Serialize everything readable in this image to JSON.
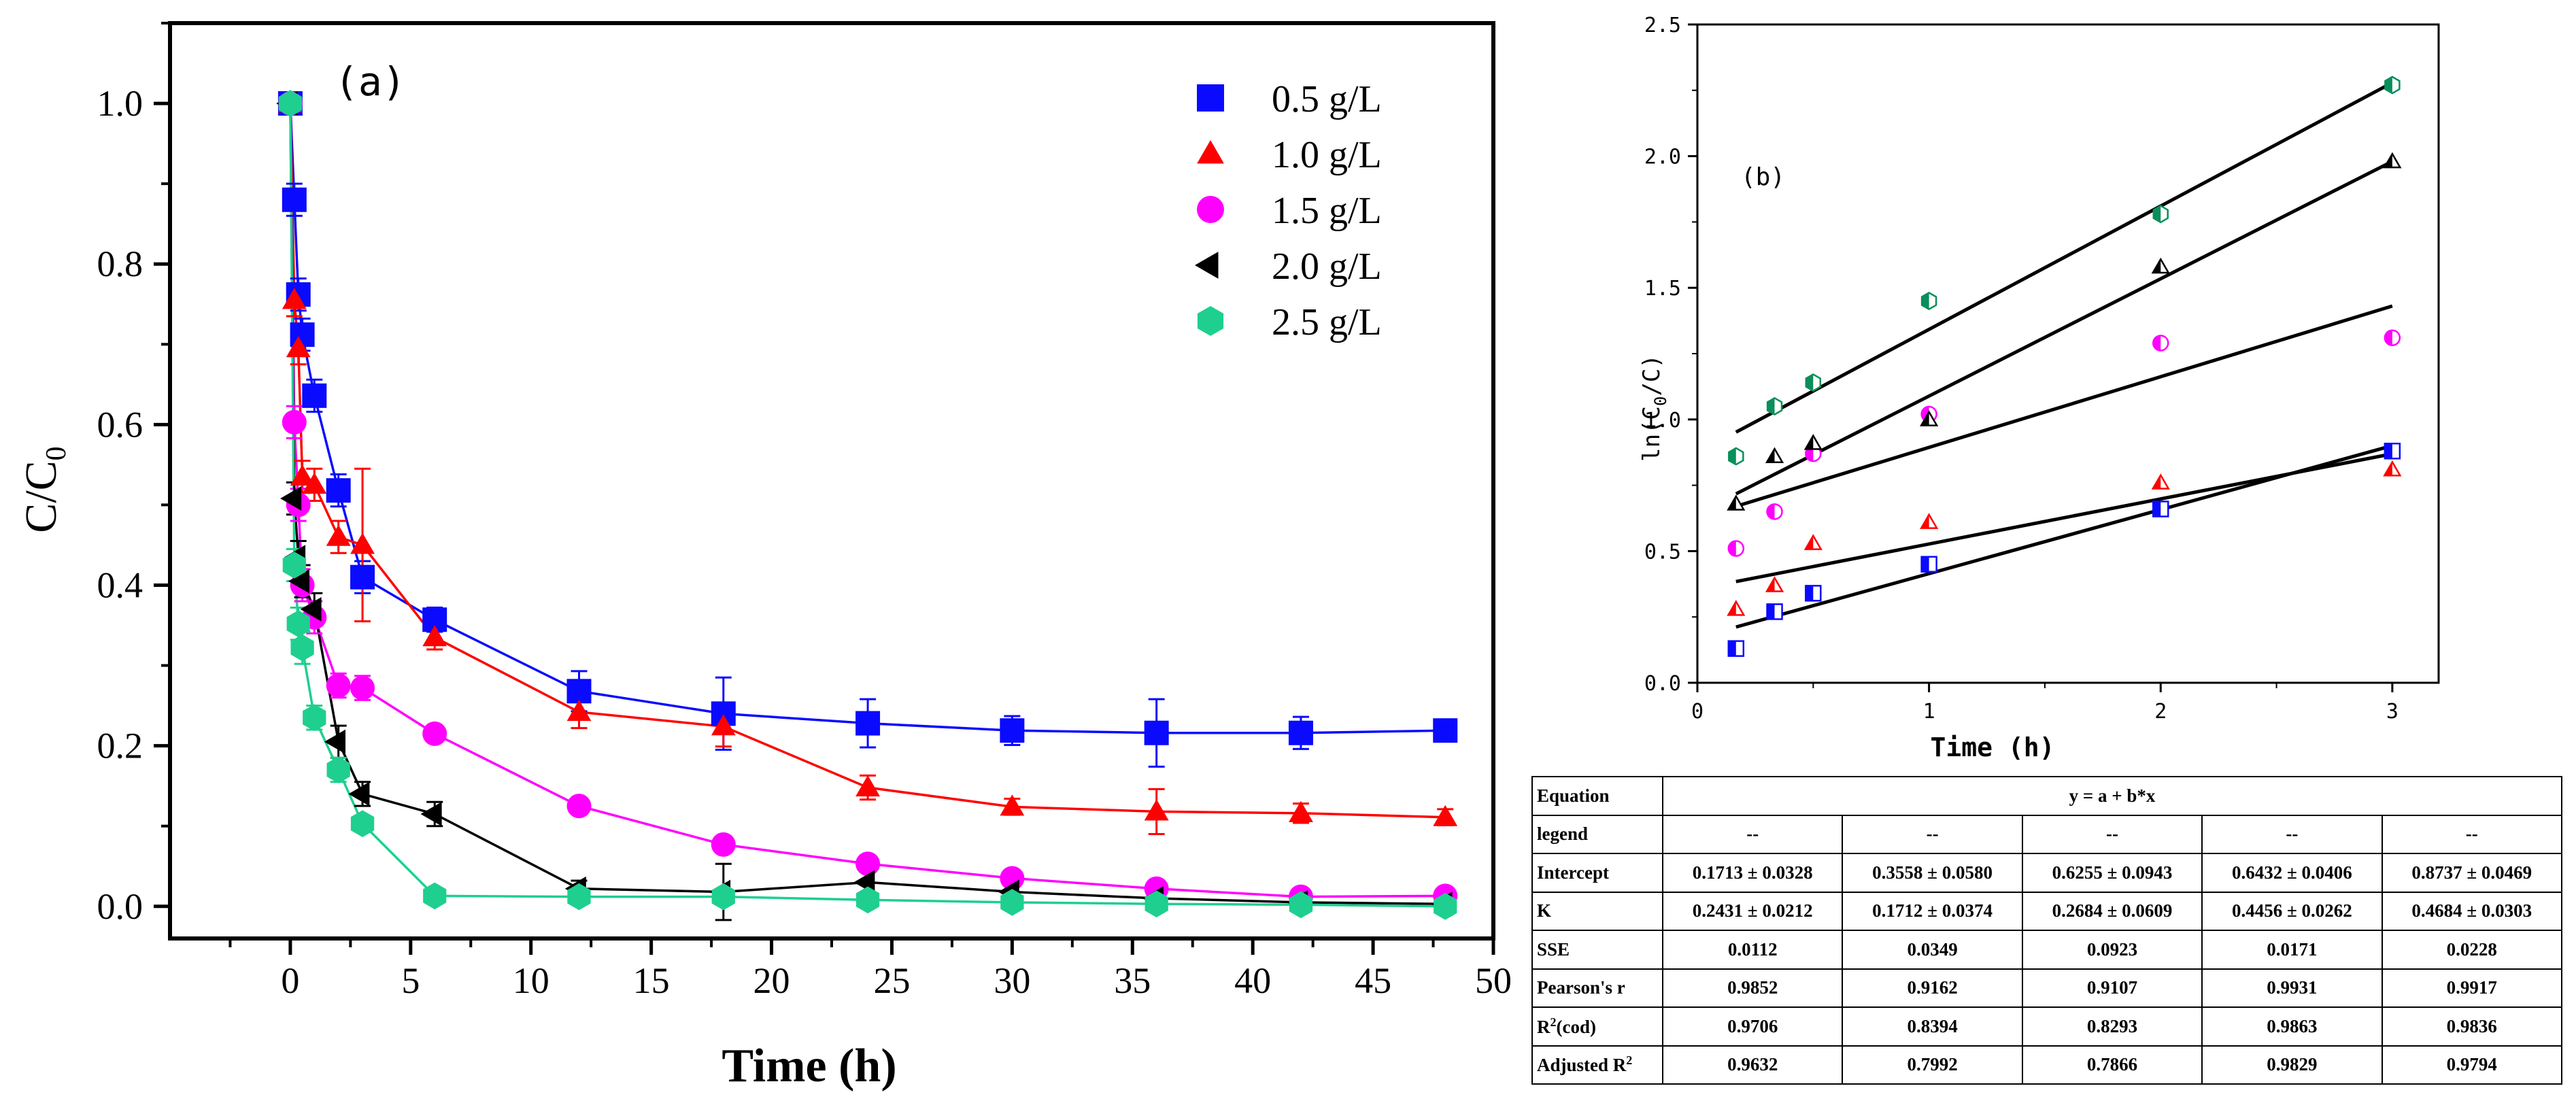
{
  "chart_data": [
    {
      "type": "line",
      "panel_label": "(a)",
      "xlabel": "Time (h)",
      "ylabel_main": "C/C",
      "ylabel_sub": "0",
      "xlim": [
        -5,
        50
      ],
      "ylim": [
        -0.04,
        1.1
      ],
      "x_ticks": [
        0,
        5,
        10,
        15,
        20,
        25,
        30,
        35,
        40,
        45,
        50
      ],
      "y_ticks": [
        0.0,
        0.2,
        0.4,
        0.6,
        0.8,
        1.0
      ],
      "x_tick_labels": [
        "0",
        "5",
        "10",
        "15",
        "20",
        "25",
        "30",
        "35",
        "40",
        "45",
        "50"
      ],
      "y_tick_labels": [
        "0.0",
        "0.2",
        "0.4",
        "0.6",
        "0.8",
        "1.0"
      ],
      "legend_position": "top-right",
      "x": [
        0,
        0.1667,
        0.3333,
        0.5,
        1,
        2,
        3,
        6,
        12,
        18,
        24,
        30,
        36,
        42,
        48
      ],
      "series": [
        {
          "name": "0.5 g/L",
          "marker": "square",
          "color": "#0a0aff",
          "values": [
            1.0,
            0.88,
            0.762,
            0.712,
            0.636,
            0.518,
            0.41,
            0.357,
            0.268,
            0.24,
            0.228,
            0.219,
            0.216,
            0.216,
            0.219
          ],
          "errors": [
            0.0,
            0.02,
            0.02,
            0.02,
            0.02,
            0.02,
            0.02,
            0.015,
            0.025,
            0.045,
            0.03,
            0.018,
            0.042,
            0.02,
            0.01
          ]
        },
        {
          "name": "1.0 g/L",
          "marker": "triangle-up",
          "color": "#ff0000",
          "values": [
            1.0,
            0.755,
            0.695,
            0.535,
            0.525,
            0.46,
            0.45,
            0.335,
            0.242,
            0.224,
            0.148,
            0.124,
            0.118,
            0.116,
            0.111
          ],
          "errors": [
            0.0,
            0.02,
            0.02,
            0.02,
            0.02,
            0.02,
            0.095,
            0.015,
            0.02,
            0.025,
            0.015,
            0.01,
            0.028,
            0.012,
            0.01
          ]
        },
        {
          "name": "1.5 g/L",
          "marker": "circle",
          "color": "#ff00ff",
          "values": [
            1.0,
            0.603,
            0.5,
            0.4,
            0.36,
            0.275,
            0.272,
            0.215,
            0.125,
            0.077,
            0.053,
            0.035,
            0.022,
            0.012,
            0.013
          ],
          "errors": [
            0.0,
            0.02,
            0.02,
            0.02,
            0.02,
            0.015,
            0.015,
            0.01,
            0.01,
            0.01,
            0.01,
            0.01,
            0.01,
            0.01,
            0.01
          ]
        },
        {
          "name": "2.0 g/L",
          "marker": "triangle-left",
          "color": "#000000",
          "values": [
            1.0,
            0.508,
            0.435,
            0.405,
            0.37,
            0.205,
            0.14,
            0.115,
            0.022,
            0.018,
            0.03,
            0.018,
            0.01,
            0.005,
            0.003
          ],
          "errors": [
            0.0,
            0.02,
            0.02,
            0.02,
            0.02,
            0.02,
            0.015,
            0.015,
            0.01,
            0.035,
            0.015,
            0.01,
            0.01,
            0.01,
            0.01
          ]
        },
        {
          "name": "2.5 g/L",
          "marker": "hexagon",
          "color": "#1fcf8f",
          "values": [
            1.0,
            0.425,
            0.352,
            0.322,
            0.235,
            0.17,
            0.103,
            0.013,
            0.012,
            0.012,
            0.008,
            0.005,
            0.003,
            0.002,
            0.0
          ],
          "errors": [
            0.0,
            0.02,
            0.02,
            0.02,
            0.015,
            0.015,
            0.01,
            0.008,
            0.008,
            0.008,
            0.008,
            0.005,
            0.005,
            0.005,
            0.005
          ]
        }
      ]
    },
    {
      "type": "scatter",
      "panel_label": "(b)",
      "xlabel": "Time (h)",
      "ylabel_pre": "ln(C",
      "ylabel_sub": "0",
      "ylabel_post": "/C)",
      "xlim": [
        0,
        3.2
      ],
      "ylim": [
        0,
        2.5
      ],
      "x_ticks": [
        0,
        1,
        2,
        3
      ],
      "y_ticks": [
        0.0,
        0.5,
        1.0,
        1.5,
        2.0,
        2.5
      ],
      "x_tick_labels": [
        "0",
        "1",
        "2",
        "3"
      ],
      "y_tick_labels": [
        "0.0",
        "0.5",
        "1.0",
        "1.5",
        "2.0",
        "2.5"
      ],
      "x": [
        0.1667,
        0.3333,
        0.5,
        1,
        2,
        3
      ],
      "series": [
        {
          "marker": "half-square",
          "color": "#0a0aff",
          "values": [
            0.13,
            0.27,
            0.34,
            0.45,
            0.66,
            0.88
          ],
          "fit": {
            "a": 0.1713,
            "b": 0.2431
          }
        },
        {
          "marker": "half-triangle",
          "color": "#ff0000",
          "values": [
            0.28,
            0.37,
            0.53,
            0.61,
            0.76,
            0.81
          ],
          "fit": {
            "a": 0.3558,
            "b": 0.1712
          }
        },
        {
          "marker": "half-circle",
          "color": "#ff00ff",
          "values": [
            0.51,
            0.65,
            0.87,
            1.02,
            1.29,
            1.31
          ],
          "fit": {
            "a": 0.6255,
            "b": 0.2684
          }
        },
        {
          "marker": "half-triangle",
          "color": "#000000",
          "values": [
            0.68,
            0.86,
            0.91,
            1.0,
            1.58,
            1.98
          ],
          "fit": {
            "a": 0.6432,
            "b": 0.4456
          }
        },
        {
          "marker": "half-hexagon",
          "color": "#0a8f5a",
          "values": [
            0.86,
            1.05,
            1.14,
            1.45,
            1.78,
            2.27
          ],
          "fit": {
            "a": 0.8737,
            "b": 0.4684
          }
        }
      ]
    }
  ],
  "table": {
    "header_label": "Equation",
    "equation": "y = a + b*x",
    "rows": [
      {
        "label": "legend",
        "values": [
          "--",
          "--",
          "--",
          "--",
          "--"
        ]
      },
      {
        "label": "Intercept",
        "values": [
          "0.1713 ± 0.0328",
          "0.3558 ± 0.0580",
          "0.6255 ± 0.0943",
          "0.6432 ± 0.0406",
          "0.8737 ± 0.0469"
        ]
      },
      {
        "label": "K",
        "values": [
          "0.2431 ± 0.0212",
          "0.1712 ± 0.0374",
          "0.2684 ± 0.0609",
          "0.4456 ± 0.0262",
          "0.4684 ± 0.0303"
        ]
      },
      {
        "label": "SSE",
        "values": [
          "0.0112",
          "0.0349",
          "0.0923",
          "0.0171",
          "0.0228"
        ]
      },
      {
        "label": "Pearson's r",
        "values": [
          "0.9852",
          "0.9162",
          "0.9107",
          "0.9931",
          "0.9917"
        ]
      },
      {
        "label": "R",
        "label_sup": "2",
        "label_post": "(cod)",
        "values": [
          "0.9706",
          "0.8394",
          "0.8293",
          "0.9863",
          "0.9836"
        ]
      },
      {
        "label": "Adjusted R",
        "label_sup": "2",
        "label_post": "",
        "values": [
          "0.9632",
          "0.7992",
          "0.7866",
          "0.9829",
          "0.9794"
        ]
      }
    ]
  }
}
